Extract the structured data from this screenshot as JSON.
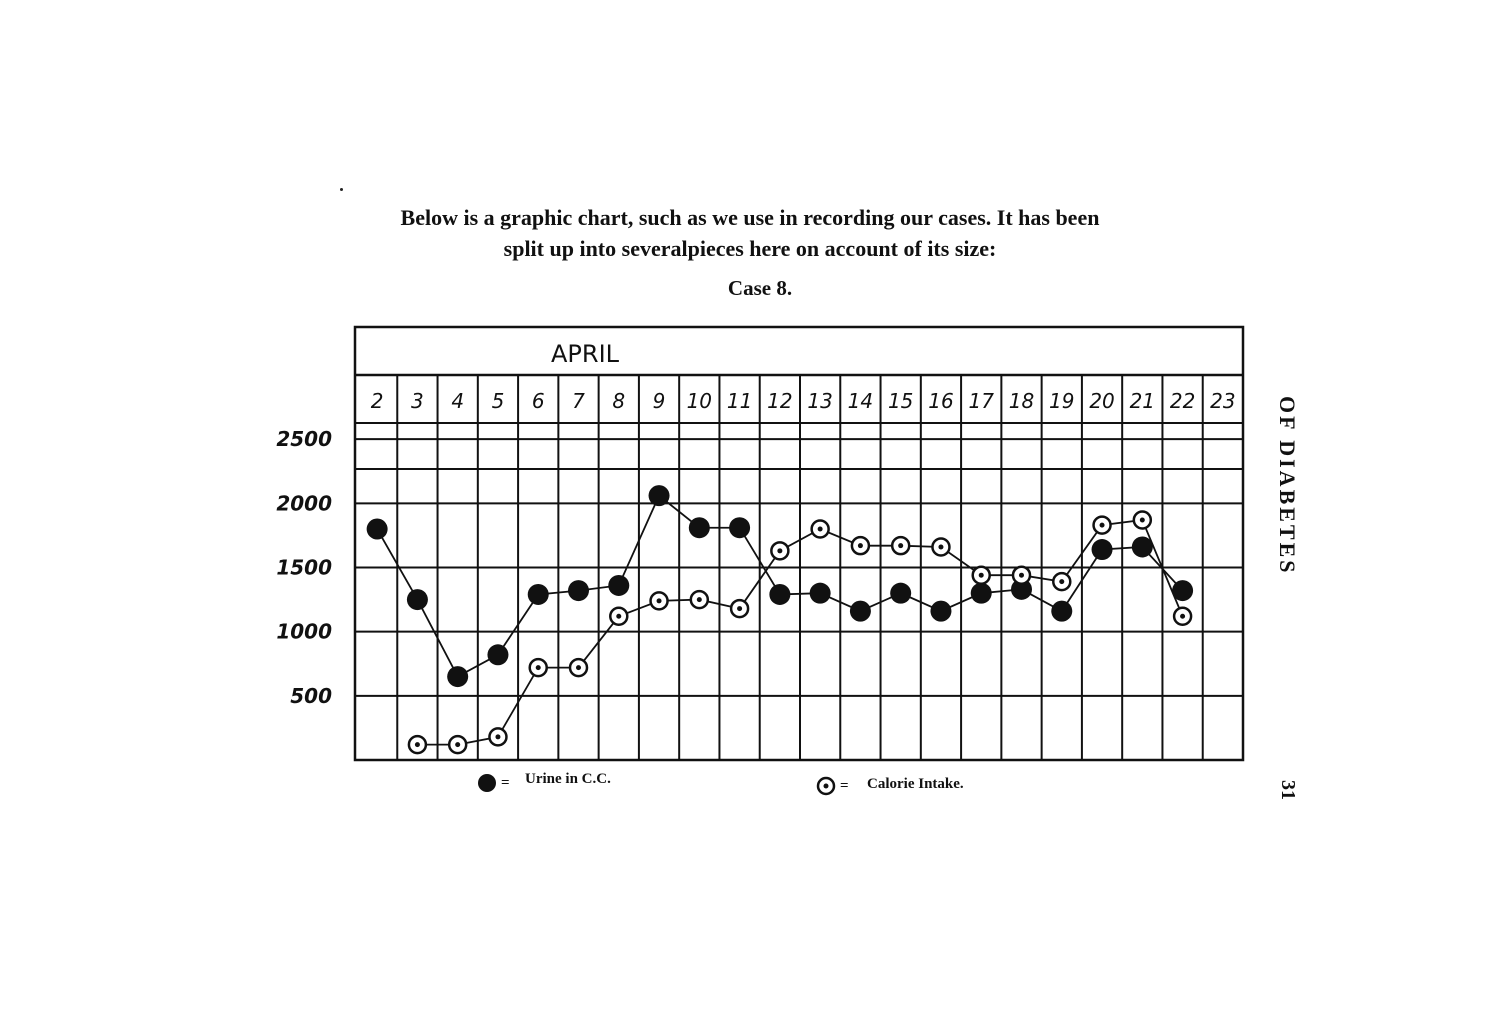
{
  "page": {
    "intro_line1": "Below is a graphic chart, such as we use in recording our cases. It has been",
    "intro_line2": "split up into severalpieces here on account of its size:",
    "case_title": "Case 8.",
    "running_head": "OF DIABETES",
    "page_number": "31"
  },
  "chart_data": {
    "type": "line",
    "month_label": "APRIL",
    "categories": [
      "2",
      "3",
      "4",
      "5",
      "6",
      "7",
      "8",
      "9",
      "10",
      "11",
      "12",
      "13",
      "14",
      "15",
      "16",
      "17",
      "18",
      "19",
      "20",
      "21",
      "22",
      "23"
    ],
    "y_tick_labels": [
      "2500",
      "2000",
      "1500",
      "1000",
      "500"
    ],
    "y_tick_values": [
      2500,
      2000,
      1500,
      1000,
      500
    ],
    "ylim": [
      0,
      3000
    ],
    "grid": true,
    "legend_position": "bottom",
    "series": [
      {
        "name": "Urine in C.C.",
        "marker": "filled-circle",
        "points": [
          {
            "x": "2",
            "y": 1800
          },
          {
            "x": "3",
            "y": 1250
          },
          {
            "x": "4",
            "y": 650
          },
          {
            "x": "5",
            "y": 820
          },
          {
            "x": "6",
            "y": 1290
          },
          {
            "x": "7",
            "y": 1320
          },
          {
            "x": "8",
            "y": 1360
          },
          {
            "x": "9",
            "y": 2060
          },
          {
            "x": "10",
            "y": 1810
          },
          {
            "x": "11",
            "y": 1810
          },
          {
            "x": "12",
            "y": 1290
          },
          {
            "x": "13",
            "y": 1300
          },
          {
            "x": "14",
            "y": 1160
          },
          {
            "x": "15",
            "y": 1300
          },
          {
            "x": "16",
            "y": 1160
          },
          {
            "x": "17",
            "y": 1300
          },
          {
            "x": "18",
            "y": 1330
          },
          {
            "x": "19",
            "y": 1160
          },
          {
            "x": "20",
            "y": 1640
          },
          {
            "x": "21",
            "y": 1660
          },
          {
            "x": "22",
            "y": 1320
          }
        ]
      },
      {
        "name": "Calorie Intake.",
        "marker": "ringed-circle",
        "points": [
          {
            "x": "3",
            "y": 120
          },
          {
            "x": "4",
            "y": 120
          },
          {
            "x": "5",
            "y": 180
          },
          {
            "x": "6",
            "y": 720
          },
          {
            "x": "7",
            "y": 720
          },
          {
            "x": "8",
            "y": 1120
          },
          {
            "x": "9",
            "y": 1240
          },
          {
            "x": "10",
            "y": 1250
          },
          {
            "x": "11",
            "y": 1180
          },
          {
            "x": "12",
            "y": 1630
          },
          {
            "x": "13",
            "y": 1800
          },
          {
            "x": "14",
            "y": 1670
          },
          {
            "x": "15",
            "y": 1670
          },
          {
            "x": "16",
            "y": 1660
          },
          {
            "x": "17",
            "y": 1440
          },
          {
            "x": "18",
            "y": 1440
          },
          {
            "x": "19",
            "y": 1390
          },
          {
            "x": "20",
            "y": 1830
          },
          {
            "x": "21",
            "y": 1870
          },
          {
            "x": "22",
            "y": 1120
          }
        ]
      }
    ]
  },
  "legend": {
    "symbol": "=",
    "urine_label": "Urine in C.C.",
    "calorie_label": "Calorie Intake."
  },
  "colors": {
    "ink": "#111111",
    "paper": "#ffffff"
  }
}
